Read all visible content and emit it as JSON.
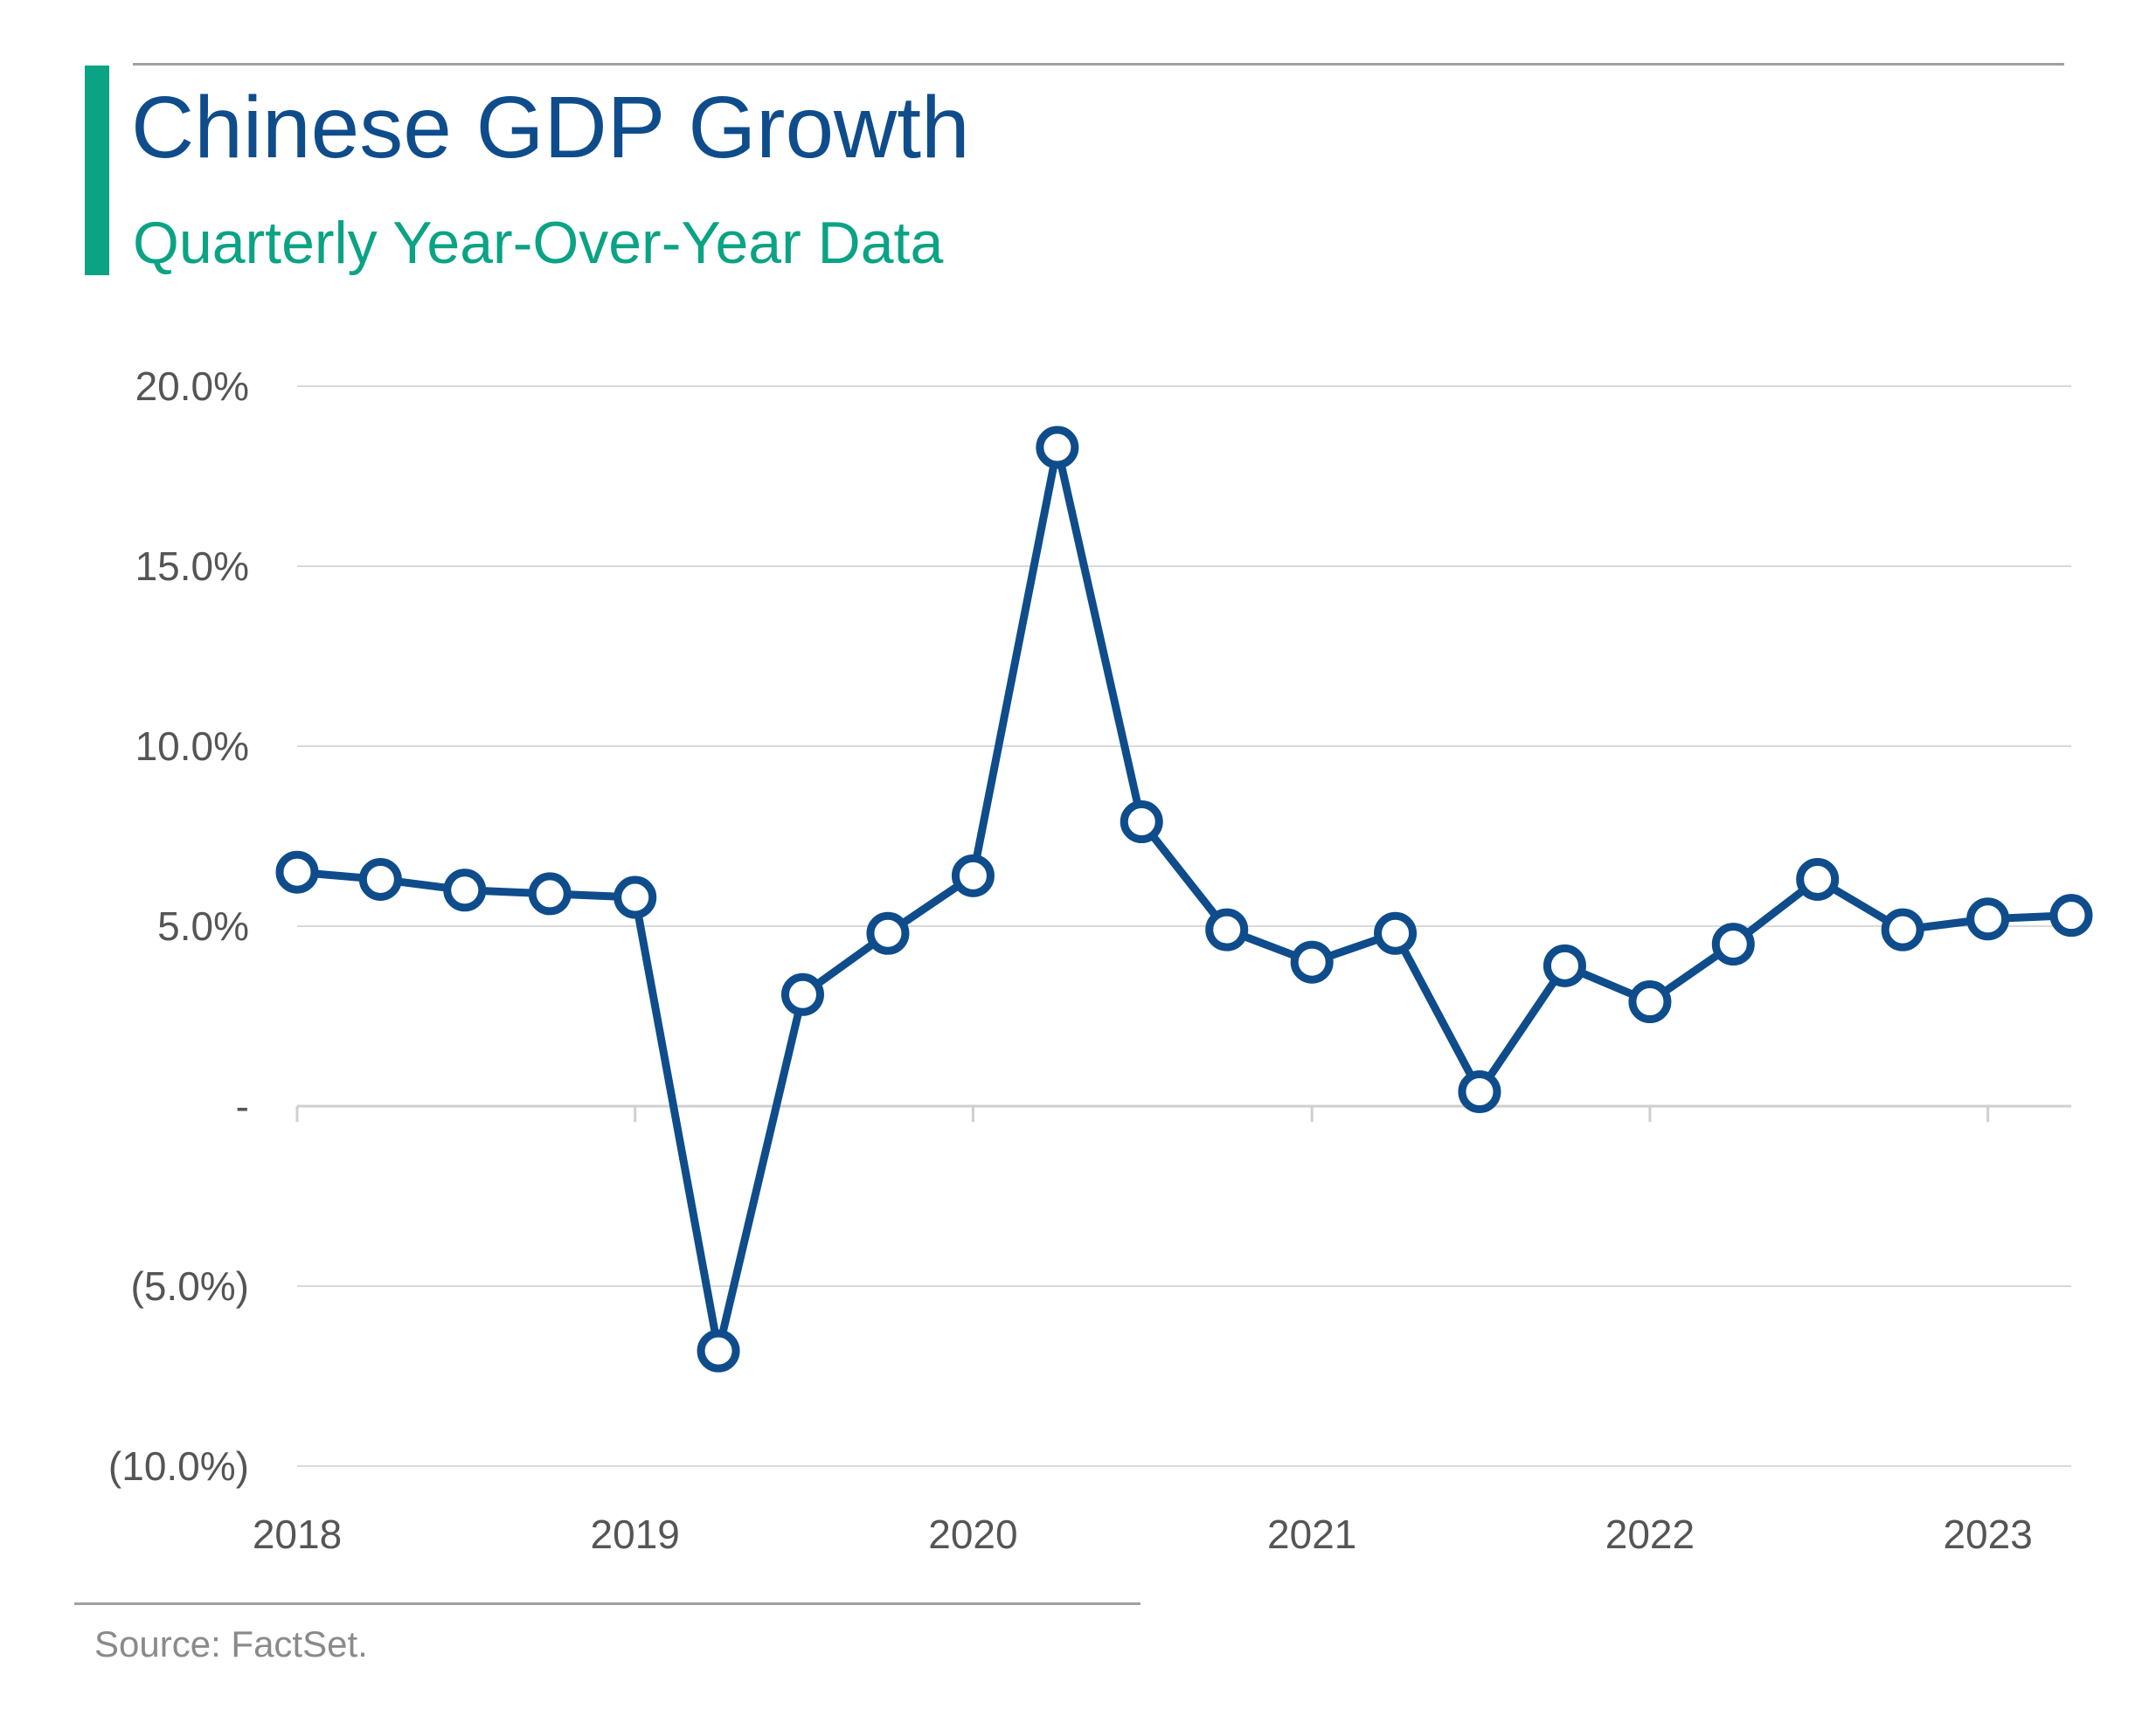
{
  "header": {
    "title": "Chinese GDP Growth",
    "subtitle": "Quarterly Year-Over-Year Data"
  },
  "footer": {
    "source": "Source: FactSet."
  },
  "colors": {
    "line": "#0f4c8b",
    "accent": "#0aa384",
    "grid": "#d9d9d9",
    "axis_text": "#555555"
  },
  "chart_data": {
    "type": "line",
    "title": "Chinese GDP Growth",
    "subtitle": "Quarterly Year-Over-Year Data",
    "xlabel": "",
    "ylabel": "",
    "ylim": [
      -10,
      20
    ],
    "xlim": [
      "2018-01-01",
      "2023-04-01"
    ],
    "grid": true,
    "x_ticks": [
      "2018",
      "2019",
      "2020",
      "2021",
      "2022",
      "2023"
    ],
    "x_tick_values": [
      "2018-01-01",
      "2019-01-01",
      "2020-01-01",
      "2021-01-01",
      "2022-01-01",
      "2023-01-01"
    ],
    "y_ticks": [
      {
        "value": 20,
        "label": "20.0%"
      },
      {
        "value": 15,
        "label": "15.0%"
      },
      {
        "value": 10,
        "label": "10.0%"
      },
      {
        "value": 5,
        "label": "5.0%"
      },
      {
        "value": 0,
        "label": "-"
      },
      {
        "value": -5,
        "label": "(5.0%)"
      },
      {
        "value": -10,
        "label": "(10.0%)"
      }
    ],
    "x": [
      "2018-01-01",
      "2018-04-01",
      "2018-07-01",
      "2018-10-01",
      "2019-01-01",
      "2019-04-01",
      "2019-07-01",
      "2019-10-01",
      "2020-01-01",
      "2020-04-01",
      "2020-07-01",
      "2020-10-01",
      "2021-01-01",
      "2021-04-01",
      "2021-07-01",
      "2021-10-01",
      "2022-01-01",
      "2022-04-01",
      "2022-07-01",
      "2022-10-01",
      "2023-01-01",
      "2023-04-01"
    ],
    "series": [
      {
        "values": [
          6.5,
          6.3,
          6.0,
          5.9,
          5.8,
          -6.8,
          3.1,
          4.8,
          6.4,
          18.3,
          7.9,
          4.9,
          4.0,
          4.8,
          0.4,
          3.9,
          2.9,
          4.5,
          6.3,
          4.9,
          5.2,
          5.3
        ]
      }
    ]
  }
}
